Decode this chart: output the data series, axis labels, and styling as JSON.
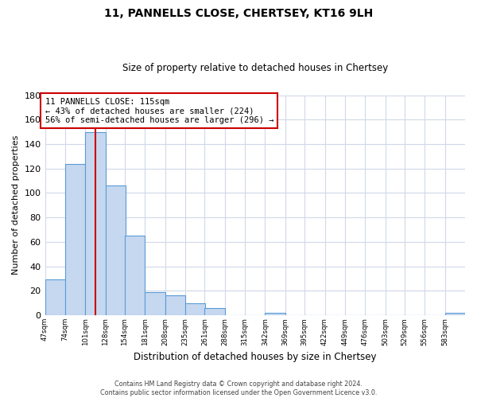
{
  "title": "11, PANNELLS CLOSE, CHERTSEY, KT16 9LH",
  "subtitle": "Size of property relative to detached houses in Chertsey",
  "xlabel": "Distribution of detached houses by size in Chertsey",
  "ylabel": "Number of detached properties",
  "bar_edges": [
    47,
    74,
    101,
    128,
    154,
    181,
    208,
    235,
    261,
    288,
    315,
    342,
    369,
    395,
    422,
    449,
    476,
    503,
    529,
    556,
    583
  ],
  "bar_heights": [
    29,
    124,
    150,
    106,
    65,
    19,
    16,
    10,
    6,
    0,
    0,
    2,
    0,
    0,
    0,
    0,
    0,
    0,
    0,
    0,
    2
  ],
  "bar_color": "#c5d8f0",
  "bar_edge_color": "#5b9bd5",
  "property_size": 115,
  "vline_color": "#cc0000",
  "annotation_line1": "11 PANNELLS CLOSE: 115sqm",
  "annotation_line2": "← 43% of detached houses are smaller (224)",
  "annotation_line3": "56% of semi-detached houses are larger (296) →",
  "annotation_box_color": "#ffffff",
  "annotation_box_edge": "#cc0000",
  "ylim": [
    0,
    180
  ],
  "xlim_left": 47,
  "xlim_right": 610,
  "tick_labels": [
    "47sqm",
    "74sqm",
    "101sqm",
    "128sqm",
    "154sqm",
    "181sqm",
    "208sqm",
    "235sqm",
    "261sqm",
    "288sqm",
    "315sqm",
    "342sqm",
    "369sqm",
    "395sqm",
    "422sqm",
    "449sqm",
    "476sqm",
    "503sqm",
    "529sqm",
    "556sqm",
    "583sqm"
  ],
  "footer_line1": "Contains HM Land Registry data © Crown copyright and database right 2024.",
  "footer_line2": "Contains public sector information licensed under the Open Government Licence v3.0.",
  "background_color": "#ffffff",
  "grid_color": "#d0d8e8",
  "title_fontsize": 10,
  "subtitle_fontsize": 8.5,
  "ylabel_fontsize": 8,
  "xlabel_fontsize": 8.5
}
